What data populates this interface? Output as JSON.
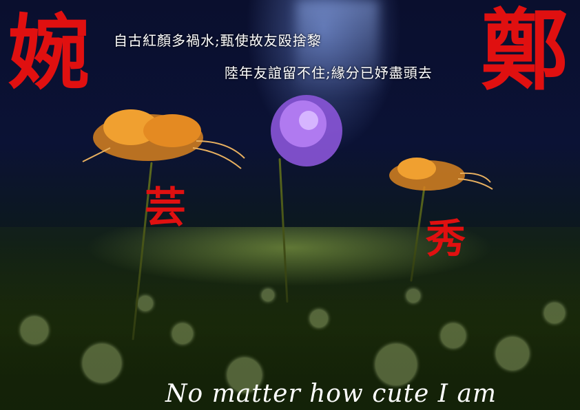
{
  "poem": {
    "line1": "自古紅顏多禍水;甄使故友殴捨黎",
    "line2": "陸年友誼留不住;緣分已妤盡頭去"
  },
  "seals": {
    "top_left": "婉",
    "top_right": "鄭",
    "middle_left": "芸",
    "middle_right": "秀"
  },
  "caption": "No matter how cute I am",
  "colors": {
    "seal_red": "#e01010",
    "lily_orange": "#e08a20",
    "chive_purple": "#9a5ce0"
  }
}
